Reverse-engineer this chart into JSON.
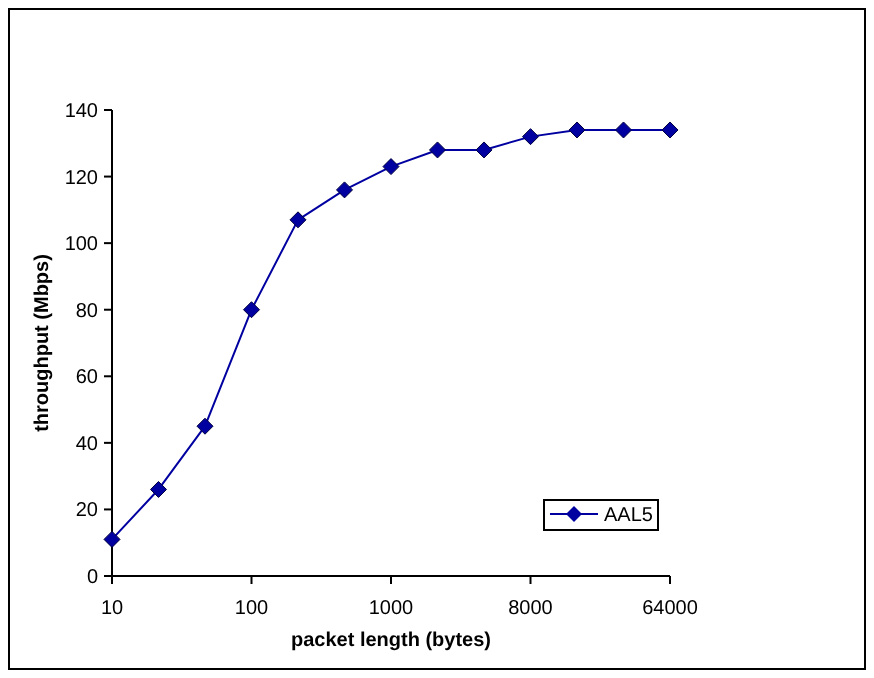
{
  "chart_data": {
    "type": "line",
    "xlabel": "packet length (bytes)",
    "ylabel": "throughput (Mbps)",
    "categories": [
      "10",
      null,
      null,
      "100",
      null,
      null,
      "1000",
      null,
      null,
      "8000",
      null,
      null,
      "64000"
    ],
    "series": [
      {
        "name": "AAL5",
        "color": "#0000a0",
        "values": [
          11,
          26,
          45,
          80,
          107,
          116,
          123,
          128,
          128,
          132,
          134,
          134,
          134
        ]
      }
    ],
    "ylim": [
      0,
      140
    ],
    "yticks": [
      0,
      20,
      40,
      60,
      80,
      100,
      120,
      140
    ],
    "grid": false,
    "legend": "bottom right",
    "marker": "diamond",
    "line_style": "solid"
  }
}
